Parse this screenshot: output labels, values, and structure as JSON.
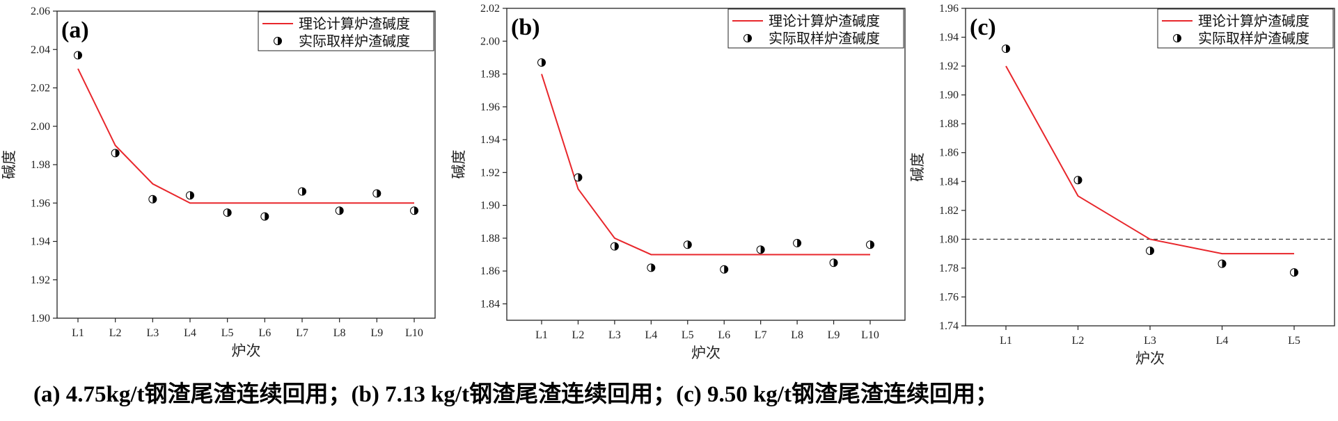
{
  "chart_data": [
    {
      "type": "line",
      "panel_label": "(a)",
      "xlabel": "炉次",
      "ylabel": "碱度",
      "categories": [
        "L1",
        "L2",
        "L3",
        "L4",
        "L5",
        "L6",
        "L7",
        "L8",
        "L9",
        "L10"
      ],
      "ylim": [
        1.9,
        2.06
      ],
      "yticks": [
        "1.90",
        "1.92",
        "1.94",
        "1.96",
        "1.98",
        "2.00",
        "2.02",
        "2.04",
        "2.06"
      ],
      "legend_position": "top-right",
      "series": [
        {
          "name": "理论计算炉渣碱度",
          "kind": "line",
          "color": "#e8262b",
          "values": [
            2.03,
            1.99,
            1.97,
            1.96,
            1.96,
            1.96,
            1.96,
            1.96,
            1.96,
            1.96
          ]
        },
        {
          "name": "实际取样炉渣碱度",
          "kind": "scatter",
          "color": "#000000",
          "values": [
            2.037,
            1.986,
            1.962,
            1.964,
            1.955,
            1.953,
            1.966,
            1.956,
            1.965,
            1.956
          ]
        }
      ]
    },
    {
      "type": "line",
      "panel_label": "(b)",
      "xlabel": "炉次",
      "ylabel": "碱度",
      "categories": [
        "L1",
        "L2",
        "L3",
        "L4",
        "L5",
        "L6",
        "L7",
        "L8",
        "L9",
        "L10"
      ],
      "ylim": [
        1.83,
        2.02
      ],
      "yticks": [
        "1.84",
        "1.86",
        "1.88",
        "1.90",
        "1.92",
        "1.94",
        "1.96",
        "1.98",
        "2.00",
        "2.02"
      ],
      "legend_position": "top-right",
      "series": [
        {
          "name": "理论计算炉渣碱度",
          "kind": "line",
          "color": "#e8262b",
          "values": [
            1.98,
            1.91,
            1.88,
            1.87,
            1.87,
            1.87,
            1.87,
            1.87,
            1.87,
            1.87
          ]
        },
        {
          "name": "实际取样炉渣碱度",
          "kind": "scatter",
          "color": "#000000",
          "values": [
            1.987,
            1.917,
            1.875,
            1.862,
            1.876,
            1.861,
            1.873,
            1.877,
            1.865,
            1.876
          ]
        }
      ]
    },
    {
      "type": "line",
      "panel_label": "(c)",
      "xlabel": "炉次",
      "ylabel": "碱度",
      "categories": [
        "L1",
        "L2",
        "L3",
        "L4",
        "L5"
      ],
      "ylim": [
        1.74,
        1.96
      ],
      "yticks": [
        "1.74",
        "1.76",
        "1.78",
        "1.80",
        "1.82",
        "1.84",
        "1.86",
        "1.88",
        "1.90",
        "1.92",
        "1.94",
        "1.96"
      ],
      "legend_position": "top-right",
      "reference_line": 1.8,
      "series": [
        {
          "name": "理论计算炉渣碱度",
          "kind": "line",
          "color": "#e8262b",
          "values": [
            1.92,
            1.83,
            1.8,
            1.79,
            1.79
          ]
        },
        {
          "name": "实际取样炉渣碱度",
          "kind": "scatter",
          "color": "#000000",
          "values": [
            1.932,
            1.841,
            1.792,
            1.783,
            1.777
          ]
        }
      ]
    }
  ],
  "caption": "(a) 4.75kg/t钢渣尾渣连续回用；(b) 7.13 kg/t钢渣尾渣连续回用；(c) 9.50 kg/t钢渣尾渣连续回用；"
}
